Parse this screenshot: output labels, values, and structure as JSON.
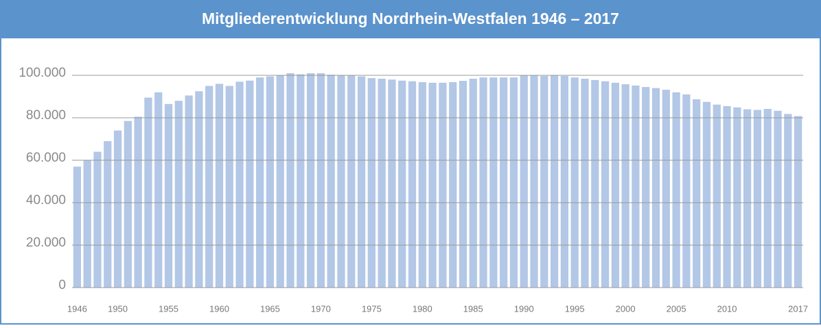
{
  "chart_data": {
    "type": "bar",
    "title": "Mitgliederentwicklung Nordrhein-Westfalen 1946 – 2017",
    "categories": [
      "1946",
      null,
      null,
      null,
      "1950",
      null,
      null,
      null,
      null,
      "1955",
      null,
      null,
      null,
      null,
      "1960",
      null,
      null,
      null,
      null,
      "1965",
      null,
      null,
      null,
      null,
      "1970",
      null,
      null,
      null,
      null,
      "1975",
      null,
      null,
      null,
      null,
      "1980",
      null,
      null,
      null,
      null,
      "1985",
      null,
      null,
      null,
      null,
      "1990",
      null,
      null,
      null,
      null,
      "1995",
      null,
      null,
      null,
      null,
      "2000",
      null,
      null,
      null,
      null,
      "2005",
      null,
      null,
      null,
      null,
      "2010",
      null,
      null,
      null,
      null,
      null,
      null,
      "2017"
    ],
    "values": [
      57000,
      60000,
      64000,
      69000,
      74000,
      78500,
      80500,
      89500,
      92000,
      86500,
      88000,
      90500,
      92500,
      95000,
      96000,
      95000,
      97000,
      97500,
      99000,
      99500,
      100000,
      101000,
      100500,
      101000,
      101000,
      100300,
      100000,
      100000,
      99500,
      98700,
      98400,
      98000,
      97500,
      97200,
      96800,
      96500,
      96500,
      96800,
      97400,
      98400,
      99000,
      99000,
      99000,
      99000,
      100000,
      100000,
      99700,
      100000,
      99700,
      99000,
      98400,
      97800,
      97200,
      96500,
      95800,
      95200,
      94500,
      94000,
      93200,
      92000,
      91000,
      88700,
      87500,
      86200,
      85500,
      84900,
      84000,
      83700,
      84200,
      83300,
      81800,
      80800
    ],
    "color": "#b3c7e6",
    "ylim": [
      0,
      100000
    ],
    "yticks": [
      0,
      {
        "value": 20000,
        "label": "20.000"
      },
      {
        "value": 40000,
        "label": "40.000"
      },
      {
        "value": 60000,
        "label": "60.000"
      },
      {
        "value": 80000,
        "label": "80.000"
      },
      {
        "value": 100000,
        "label": "100.000"
      }
    ],
    "grid": true
  }
}
